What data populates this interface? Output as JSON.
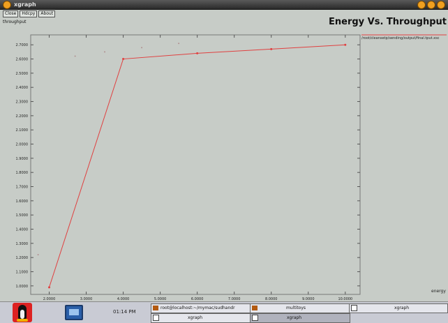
{
  "window": {
    "title": "xgraph",
    "buttons": [
      "Close",
      "Hdcpy",
      "About"
    ],
    "ylabel": "throughput"
  },
  "plot": {
    "title": "Energy Vs. Throughput",
    "legend": "/root/cleansetp/sending/output/final.tput.xsc",
    "xunit": "energy"
  },
  "chart_data": {
    "type": "line",
    "title": "Energy Vs. Throughput",
    "xlabel": "energy",
    "ylabel": "throughput",
    "xlim": [
      1.5,
      10.4
    ],
    "ylim": [
      0.94,
      2.77
    ],
    "xticks": [
      "2.0000",
      "3.0000",
      "4.0000",
      "5.0000",
      "6.0000",
      "7.0000",
      "8.0000",
      "9.0000",
      "10.0000"
    ],
    "yticks": [
      "1.0000",
      "1.1000",
      "1.2000",
      "1.3000",
      "1.4000",
      "1.5000",
      "1.6000",
      "1.7000",
      "1.8000",
      "1.9000",
      "2.0000",
      "2.1000",
      "2.2000",
      "2.3000",
      "2.4000",
      "2.5000",
      "2.6000",
      "2.7000"
    ],
    "grid": false,
    "series": [
      {
        "color": "#e04040",
        "x": [
          2.0,
          4.0,
          6.0,
          8.0,
          10.0
        ],
        "y": [
          0.99,
          2.6,
          2.64,
          2.67,
          2.7
        ]
      }
    ],
    "stray_points": {
      "x": [
        1.7,
        2.7,
        3.5,
        4.5,
        5.5
      ],
      "y": [
        1.22,
        2.62,
        2.65,
        2.68,
        2.71
      ]
    }
  },
  "taskbar": {
    "clock": "01:14 PM",
    "tasks": [
      {
        "label": "root@localhost:~/mymac/sudhandr",
        "sub": "xgraph"
      },
      {
        "label": "multitoys",
        "sub": "xgraph"
      },
      {
        "label": "xgraph",
        "sub": ""
      }
    ]
  }
}
